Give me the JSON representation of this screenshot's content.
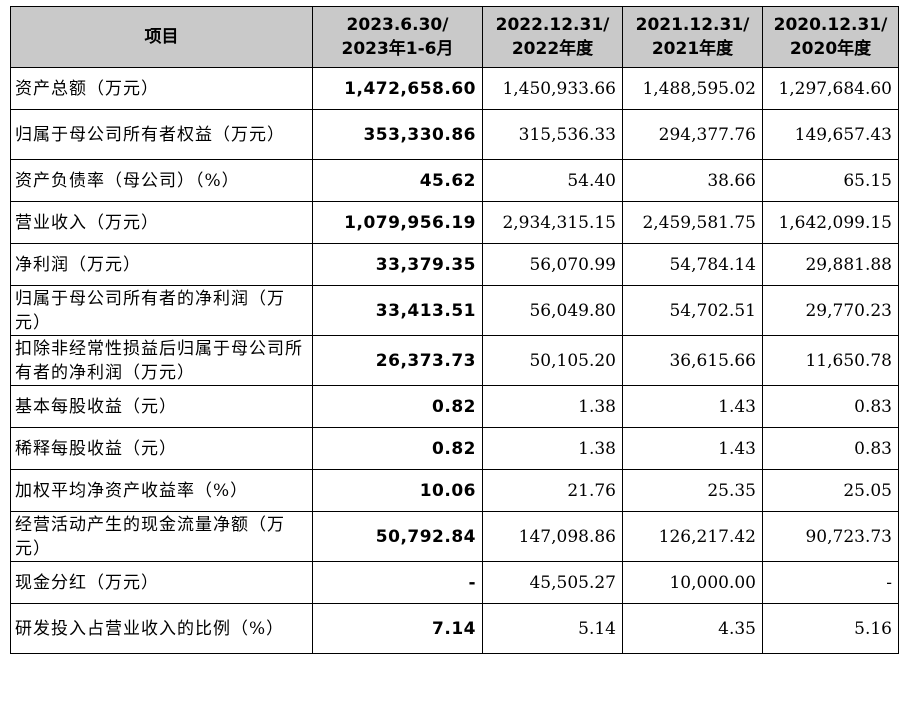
{
  "table": {
    "headers": [
      {
        "line1": "项目",
        "line2": ""
      },
      {
        "line1": "2023.6.30/",
        "line2": "2023年1-6月"
      },
      {
        "line1": "2022.12.31/",
        "line2": "2022年度"
      },
      {
        "line1": "2021.12.31/",
        "line2": "2021年度"
      },
      {
        "line1": "2020.12.31/",
        "line2": "2020年度"
      }
    ],
    "rows": [
      {
        "label": "资产总额（万元）",
        "values": [
          "1,472,658.60",
          "1,450,933.66",
          "1,488,595.02",
          "1,297,684.60"
        ]
      },
      {
        "label": "归属于母公司所有者权益（万元）",
        "values": [
          "353,330.86",
          "315,536.33",
          "294,377.76",
          "149,657.43"
        ]
      },
      {
        "label": "资产负债率（母公司）（%）",
        "values": [
          "45.62",
          "54.40",
          "38.66",
          "65.15"
        ]
      },
      {
        "label": "营业收入（万元）",
        "values": [
          "1,079,956.19",
          "2,934,315.15",
          "2,459,581.75",
          "1,642,099.15"
        ]
      },
      {
        "label": "净利润（万元）",
        "values": [
          "33,379.35",
          "56,070.99",
          "54,784.14",
          "29,881.88"
        ]
      },
      {
        "label": "归属于母公司所有者的净利润（万元）",
        "values": [
          "33,413.51",
          "56,049.80",
          "54,702.51",
          "29,770.23"
        ]
      },
      {
        "label": "扣除非经常性损益后归属于母公司所有者的净利润（万元）",
        "values": [
          "26,373.73",
          "50,105.20",
          "36,615.66",
          "11,650.78"
        ]
      },
      {
        "label": "基本每股收益（元）",
        "values": [
          "0.82",
          "1.38",
          "1.43",
          "0.83"
        ]
      },
      {
        "label": "稀释每股收益（元）",
        "values": [
          "0.82",
          "1.38",
          "1.43",
          "0.83"
        ]
      },
      {
        "label": "加权平均净资产收益率（%）",
        "values": [
          "10.06",
          "21.76",
          "25.35",
          "25.05"
        ]
      },
      {
        "label": "经营活动产生的现金流量净额（万元）",
        "values": [
          "50,792.84",
          "147,098.86",
          "126,217.42",
          "90,723.73"
        ]
      },
      {
        "label": "现金分红（万元）",
        "values": [
          "-",
          "45,505.27",
          "10,000.00",
          "-"
        ]
      },
      {
        "label": "研发投入占营业收入的比例（%）",
        "values": [
          "7.14",
          "5.14",
          "4.35",
          "5.16"
        ]
      }
    ]
  }
}
